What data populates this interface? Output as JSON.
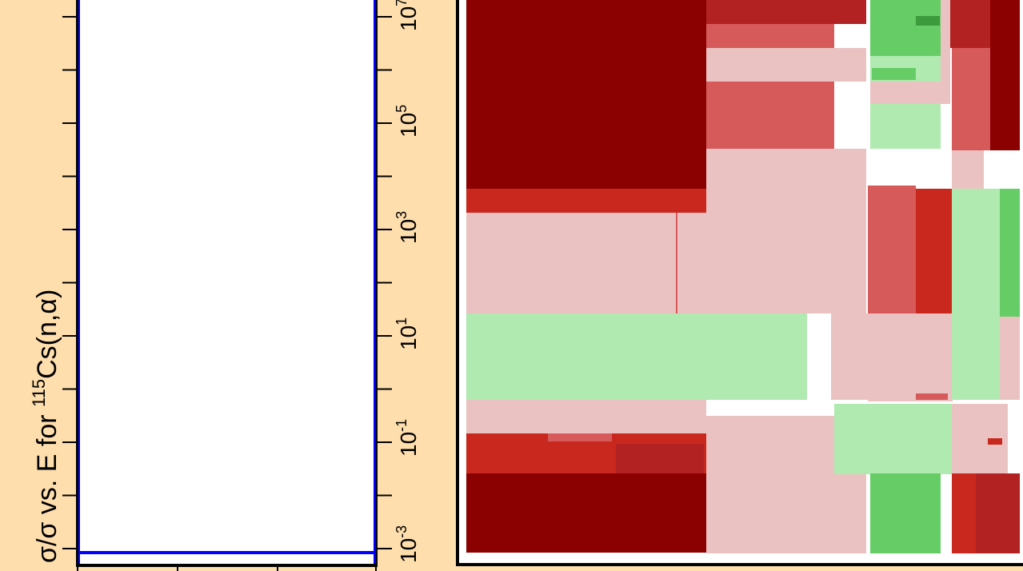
{
  "background_color": "#FFDEAD",
  "chart_data": [
    {
      "type": "line",
      "title": "",
      "ylabel_prefix": "σ/σ vs. E for ",
      "ylabel_isotope_mass": "115",
      "ylabel_reaction": "Cs(n,α)",
      "yscale": "log",
      "ylim": [
        0.0005,
        30000000
      ],
      "series": [
        {
          "color": "#0000FF",
          "values": [
            0.001,
            0.001
          ]
        }
      ],
      "line_color": "#0000FF"
    },
    {
      "type": "heatmap",
      "title": "",
      "yscale": "log",
      "y_ticks": [
        {
          "base": "10",
          "exp": "-3",
          "value": 0.001
        },
        {
          "base": "10",
          "exp": "-1",
          "value": 0.1
        },
        {
          "base": "10",
          "exp": "1",
          "value": 10
        },
        {
          "base": "10",
          "exp": "3",
          "value": 1000
        },
        {
          "base": "10",
          "exp": "5",
          "value": 100000
        },
        {
          "base": "10",
          "exp": "7",
          "value": 10000000
        }
      ],
      "minor_y_ticks": [
        0.01,
        1,
        100,
        10000,
        1000000,
        100000000
      ],
      "palette": {
        "dark_red": "#8B0000",
        "firebrick": "#B22222",
        "red": "#C8281E",
        "indian_red": "#D75A5A",
        "pale_pink": "#EBC2C2",
        "pale_green": "#B0EAB0",
        "green": "#66CD66",
        "dark_green": "#3C9B3C",
        "white": "#FFFFFF"
      }
    }
  ]
}
